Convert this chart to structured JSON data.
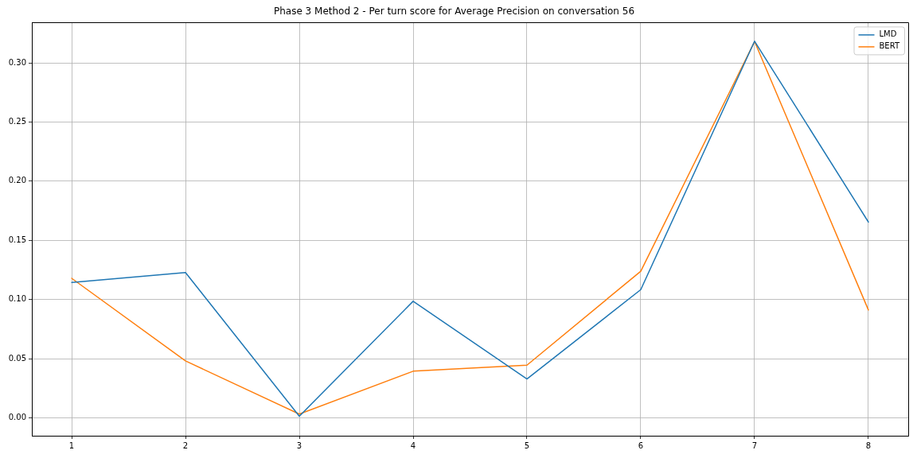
{
  "chart_data": {
    "type": "line",
    "title": "Phase 3 Method 2 - Per turn score for Average Precision on conversation 56",
    "x": [
      1,
      2,
      3,
      4,
      5,
      6,
      7,
      8
    ],
    "series": [
      {
        "name": "LMD",
        "color": "#1f77b4",
        "values": [
          0.1145,
          0.1229,
          0.0015,
          0.0986,
          0.033,
          0.1084,
          0.3183,
          0.1655
        ]
      },
      {
        "name": "BERT",
        "color": "#ff7f0e",
        "values": [
          0.118,
          0.0482,
          0.0033,
          0.0395,
          0.0446,
          0.124,
          0.318,
          0.0912
        ]
      }
    ],
    "xlim": [
      0.65,
      8.35
    ],
    "xticks": [
      1,
      2,
      3,
      4,
      5,
      6,
      7,
      8
    ],
    "ylim": [
      -0.015,
      0.334
    ],
    "yticks": [
      {
        "value": 0,
        "label": "0.00"
      },
      {
        "value": 0.05,
        "label": "0.05"
      },
      {
        "value": 0.1,
        "label": "0.10"
      },
      {
        "value": 0.15,
        "label": "0.15"
      },
      {
        "value": 0.2,
        "label": "0.20"
      },
      {
        "value": 0.25,
        "label": "0.25"
      },
      {
        "value": 0.3,
        "label": "0.30"
      }
    ],
    "grid": true,
    "legend": "top right"
  }
}
